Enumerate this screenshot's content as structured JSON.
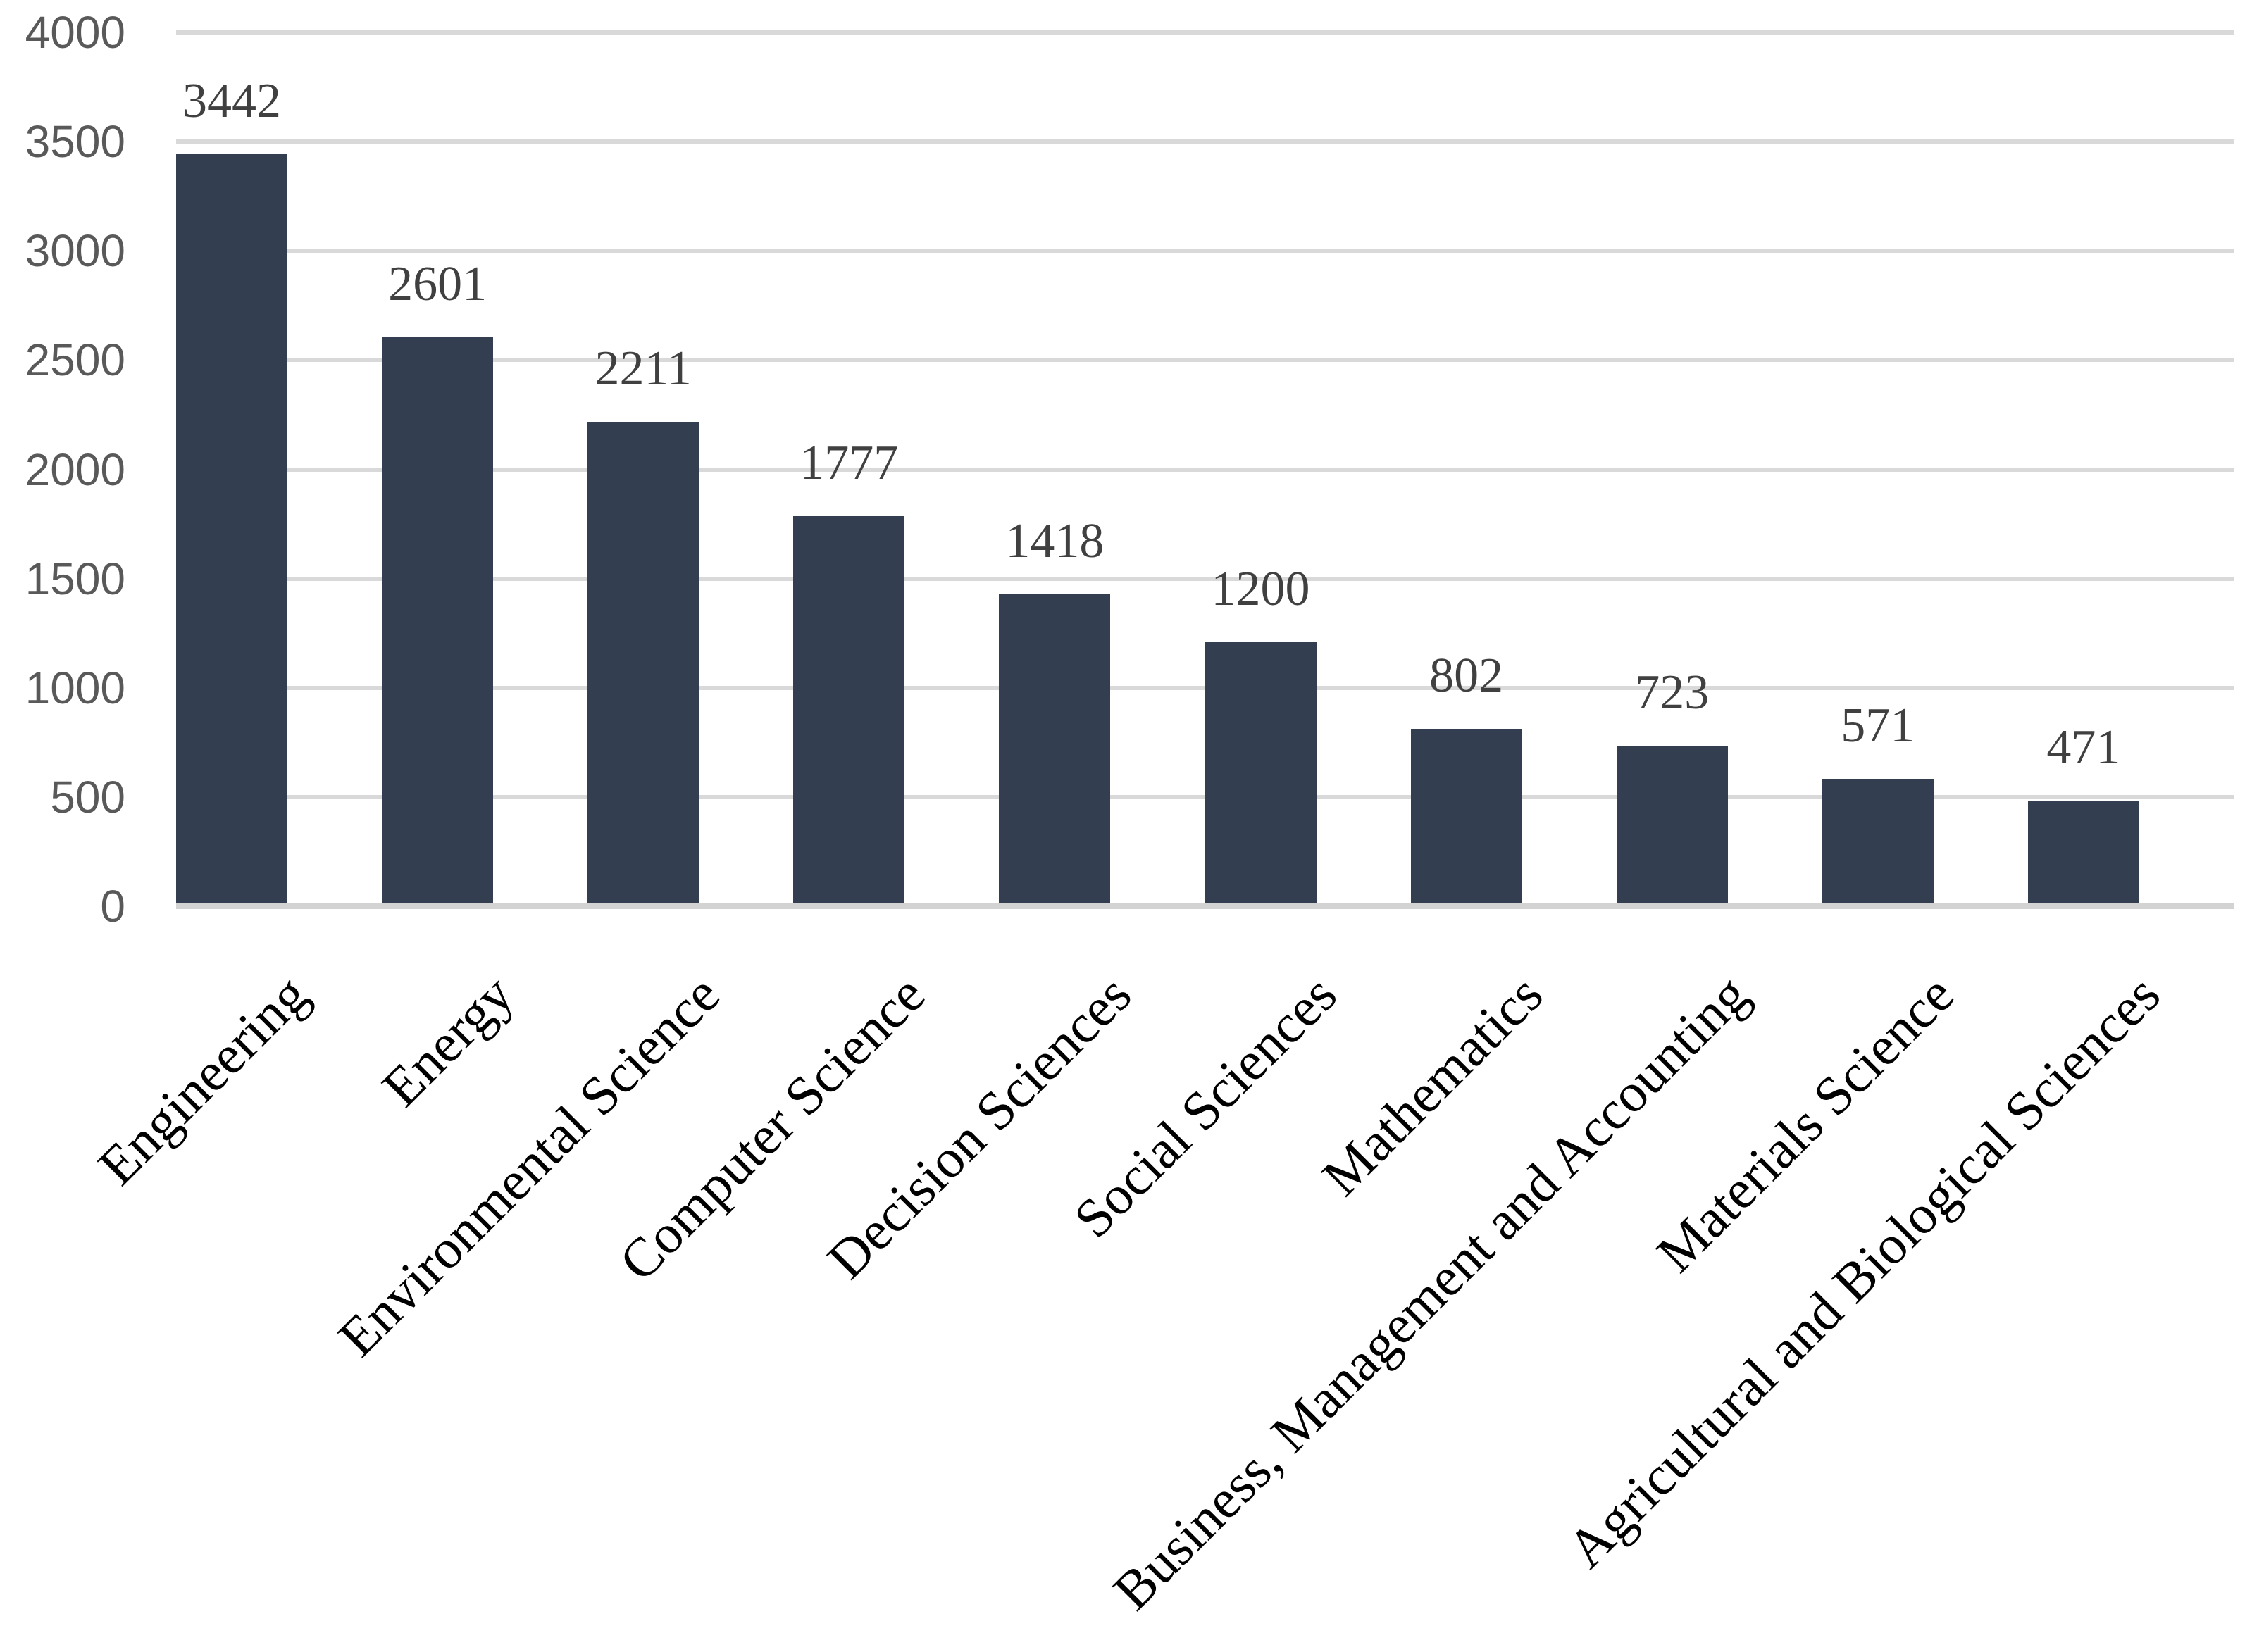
{
  "chart_data": {
    "type": "bar",
    "title": "",
    "categories": [
      "Engineering",
      "Energy",
      "Environmental Science",
      "Computer Science",
      "Decision Sciences",
      "Social Sciences",
      "Mathematics",
      "Business, Management and Accounting",
      "Materials Science",
      "Agricultural and Biological Sciences"
    ],
    "values": [
      3442,
      2601,
      2211,
      1777,
      1418,
      1200,
      802,
      723,
      571,
      471
    ],
    "data_labels": [
      "3442",
      "2601",
      "2211",
      "1777",
      "1418",
      "1200",
      "802",
      "723",
      "571",
      "471"
    ],
    "xlabel": "",
    "ylabel": "",
    "ylim": [
      0,
      4000
    ],
    "ytick_step": 500,
    "yticks": [
      "4000",
      "3500",
      "3000",
      "2500",
      "2000",
      "1500",
      "1000",
      "500",
      "0"
    ],
    "grid": true,
    "legend_position": "none",
    "x_tick_rotation_degrees": 45,
    "colors": {
      "bar_fill": "#333F50",
      "gridline": "#D9D9D9",
      "axis_line": "#D3D3D3",
      "ytick_text": "#595959",
      "value_label_text": "#404040",
      "category_label_text": "#000000",
      "background": "#FFFFFF"
    }
  }
}
